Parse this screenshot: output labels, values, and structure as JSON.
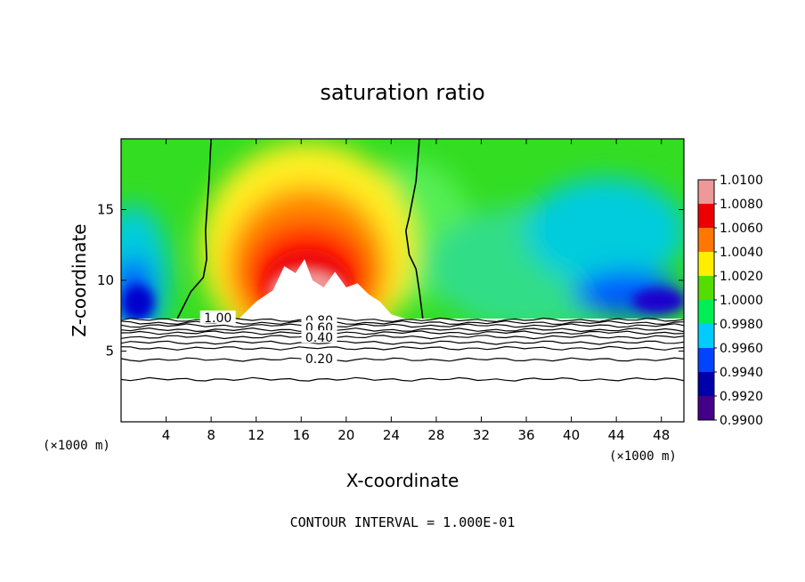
{
  "chart_data": {
    "type": "heatmap",
    "title": "saturation ratio",
    "xlabel": "X-coordinate",
    "ylabel": "Z-coordinate",
    "x_unit": "(×1000 m)",
    "x_unit_right": "(×1000 m)",
    "xlim": [
      0,
      50
    ],
    "ylim": [
      0,
      20
    ],
    "x_ticks": [
      4,
      8,
      12,
      16,
      20,
      24,
      28,
      32,
      36,
      40,
      44,
      48
    ],
    "y_ticks": [
      5,
      10,
      15
    ],
    "footer": "CONTOUR INTERVAL = 1.000E-01",
    "colorbar": {
      "labels": [
        "1.0100",
        "1.0080",
        "1.0060",
        "1.0040",
        "1.0020",
        "1.0000",
        "0.9980",
        "0.9960",
        "0.9940",
        "0.9920",
        "0.9900"
      ],
      "colors": [
        "#ee9999",
        "#ee0000",
        "#ff7700",
        "#ffee00",
        "#55dd00",
        "#00ee55",
        "#00ccff",
        "#0044ff",
        "#0000aa",
        "#440088"
      ]
    },
    "contour_labels": [
      {
        "text": "1.00",
        "x": 8.6,
        "y": 7.3
      },
      {
        "text": "0.80",
        "x": 17.6,
        "y": 7.1
      },
      {
        "text": "0.60",
        "x": 17.6,
        "y": 6.6
      },
      {
        "text": "0.40",
        "x": 17.6,
        "y": 5.9
      },
      {
        "text": "0.20",
        "x": 17.6,
        "y": 4.4
      }
    ],
    "saturation_line_1": [
      [
        8,
        20
      ],
      [
        7.8,
        17
      ],
      [
        7.5,
        13.5
      ],
      [
        7.6,
        11.5
      ],
      [
        7.3,
        10.2
      ],
      [
        6.2,
        9.2
      ],
      [
        5.0,
        7.3
      ]
    ],
    "saturation_line_2": [
      [
        26.5,
        20
      ],
      [
        26.2,
        17
      ],
      [
        25.6,
        14.5
      ],
      [
        25.3,
        13.5
      ],
      [
        25.6,
        11.8
      ],
      [
        26.2,
        10.8
      ],
      [
        26.5,
        9.2
      ],
      [
        26.8,
        7.3
      ]
    ],
    "white_peaks": [
      [
        10.5,
        7.3
      ],
      [
        12,
        8.5
      ],
      [
        13.5,
        9.3
      ],
      [
        14.5,
        11
      ],
      [
        15.5,
        10.5
      ],
      [
        16.3,
        11.5
      ],
      [
        17,
        10
      ],
      [
        18,
        9.5
      ],
      [
        19,
        10.6
      ],
      [
        20,
        9.5
      ],
      [
        21,
        9.8
      ],
      [
        22,
        9.0
      ],
      [
        23,
        8.5
      ],
      [
        24,
        7.6
      ],
      [
        25.2,
        7.3
      ]
    ],
    "low_contours": [
      7.2,
      7.0,
      6.8,
      6.5,
      6.3,
      6.0,
      5.6,
      5.2,
      4.4,
      3.0
    ]
  }
}
